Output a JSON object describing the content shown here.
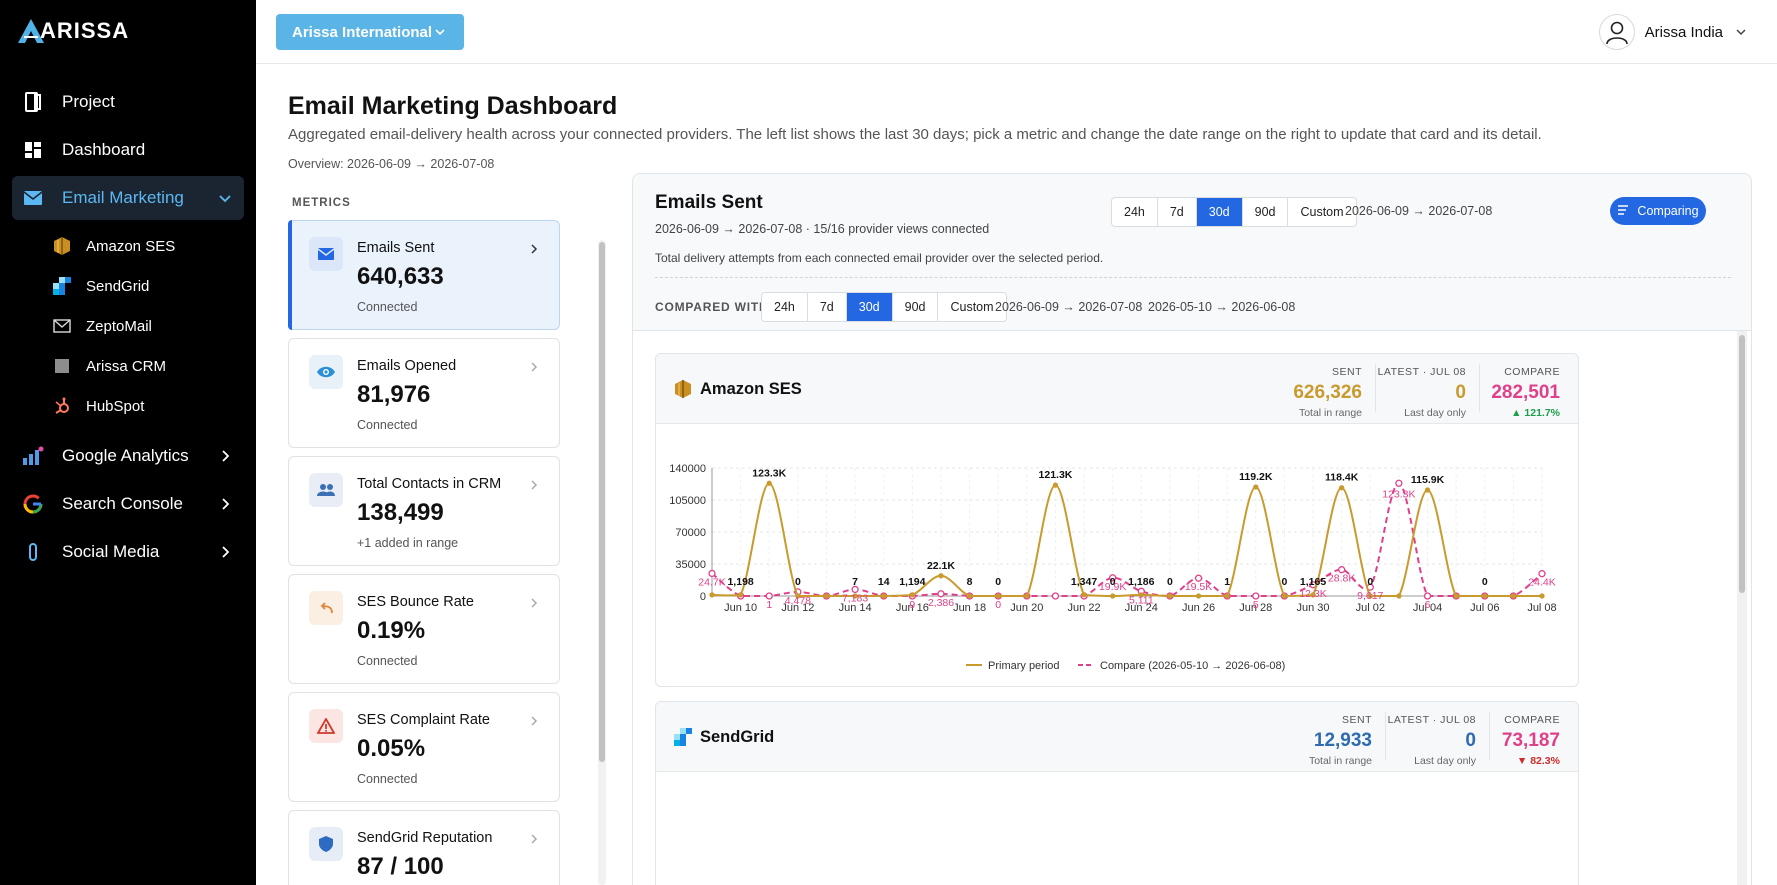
{
  "brand": {
    "logo_text": "ARISSA"
  },
  "sidebar": {
    "items": [
      {
        "label": "Project",
        "icon": "project-icon"
      },
      {
        "label": "Dashboard",
        "icon": "dashboard-icon"
      },
      {
        "label": "Email Marketing",
        "icon": "mail-icon"
      },
      {
        "label": "Google Analytics",
        "icon": "analytics-icon"
      },
      {
        "label": "Search Console",
        "icon": "google-icon"
      },
      {
        "label": "Social Media",
        "icon": "social-icon"
      }
    ],
    "email_sub": [
      {
        "label": "Amazon SES",
        "icon": "amazon-ses-icon"
      },
      {
        "label": "SendGrid",
        "icon": "sendgrid-icon"
      },
      {
        "label": "ZeptoMail",
        "icon": "zeptomail-icon"
      },
      {
        "label": "Arissa CRM",
        "icon": "crm-icon"
      },
      {
        "label": "HubSpot",
        "icon": "hubspot-icon"
      }
    ]
  },
  "topbar": {
    "org": "Arissa International",
    "user": "Arissa India"
  },
  "page": {
    "title": "Email Marketing Dashboard",
    "description": "Aggregated email-delivery health across your connected providers. The left list shows the last 30 days; pick a metric and change the date range on the right to update that card and its detail.",
    "overview": "Overview: 2026-06-09 → 2026-07-08",
    "metrics_label": "METRICS"
  },
  "metrics": [
    {
      "name": "Emails Sent",
      "value": "640,633",
      "sub": "Connected",
      "icon": "mail-icon",
      "accent": "#2467e3"
    },
    {
      "name": "Emails Opened",
      "value": "81,976",
      "sub": "Connected",
      "icon": "eye-icon",
      "accent": "#2a8fd6"
    },
    {
      "name": "Total Contacts in CRM",
      "value": "138,499",
      "sub": "+1 added in range",
      "icon": "users-icon",
      "accent": "#3b6fb6"
    },
    {
      "name": "SES Bounce Rate",
      "value": "0.19%",
      "sub": "Connected",
      "icon": "bounce-icon",
      "accent": "#e0853a"
    },
    {
      "name": "SES Complaint Rate",
      "value": "0.05%",
      "sub": "Connected",
      "icon": "warning-icon",
      "accent": "#d33a2c"
    },
    {
      "name": "SendGrid Reputation",
      "value": "87 / 100",
      "sub": "",
      "icon": "shield-icon",
      "accent": "#2f6bc2"
    }
  ],
  "detail": {
    "title": "Emails Sent",
    "subtitle": "2026-06-09 → 2026-07-08 · 15/16 provider views connected",
    "description": "Total delivery attempts from each connected email provider over the selected period.",
    "ranges": [
      "24h",
      "7d",
      "30d",
      "90d",
      "Custom"
    ],
    "selected_range": "30d",
    "range_text": "2026-06-09 → 2026-07-08",
    "comparing_label": "Comparing",
    "compared_with_label": "COMPARED WITH",
    "compare_ranges": [
      "24h",
      "7d",
      "30d",
      "90d",
      "Custom"
    ],
    "compare_selected": "30d",
    "primary_range": "2026-06-09 → 2026-07-08",
    "compare_range": "2026-05-10 → 2026-06-08"
  },
  "providers": [
    {
      "name": "Amazon SES",
      "sent_label": "SENT",
      "sent": "626,326",
      "sent_note": "Total in range",
      "sent_color": "#c99a2e",
      "latest_label": "LATEST · JUL 08",
      "latest": "0",
      "latest_note": "Last day only",
      "latest_color": "#c99a2e",
      "compare_label": "COMPARE",
      "compare": "282,501",
      "change": "▲ 121.7%",
      "change_color": "#1e9e4a"
    },
    {
      "name": "SendGrid",
      "sent_label": "SENT",
      "sent": "12,933",
      "sent_note": "Total in range",
      "sent_color": "#2f6bb0",
      "latest_label": "LATEST · JUL 08",
      "latest": "0",
      "latest_note": "Last day only",
      "latest_color": "#2f6bb0",
      "compare_label": "COMPARE",
      "compare": "73,187",
      "change": "▼ 82.3%",
      "change_color": "#d02b2b"
    }
  ],
  "chart_data": {
    "type": "line",
    "x": [
      "Jun 09",
      "Jun 10",
      "Jun 11",
      "Jun 12",
      "Jun 13",
      "Jun 14",
      "Jun 15",
      "Jun 16",
      "Jun 17",
      "Jun 18",
      "Jun 19",
      "Jun 20",
      "Jun 21",
      "Jun 22",
      "Jun 23",
      "Jun 24",
      "Jun 25",
      "Jun 26",
      "Jun 27",
      "Jun 28",
      "Jun 29",
      "Jun 30",
      "Jul 01",
      "Jul 02",
      "Jul 03",
      "Jul 04",
      "Jul 05",
      "Jul 06",
      "Jul 07",
      "Jul 08"
    ],
    "xticks": [
      "Jun 10",
      "Jun 12",
      "Jun 14",
      "Jun 16",
      "Jun 18",
      "Jun 20",
      "Jun 22",
      "Jun 24",
      "Jun 26",
      "Jun 28",
      "Jun 30",
      "Jul 02",
      "Jul 04",
      "Jul 06",
      "Jul 08"
    ],
    "yticks": [
      0,
      35000,
      70000,
      105000,
      140000
    ],
    "ylim": [
      0,
      140000
    ],
    "series": [
      {
        "name": "Primary period",
        "color": "#c99a2e",
        "dashed": false,
        "values": [
          1198,
          1198,
          123300,
          0,
          7,
          7,
          14,
          1194,
          22100,
          8,
          0,
          0,
          121300,
          1347,
          0,
          1186,
          0,
          0,
          1,
          119200,
          0,
          1165,
          118400,
          0,
          0,
          115900,
          0,
          0,
          0,
          0
        ],
        "labels": [
          "",
          "1,198",
          "123.3K",
          "0",
          "",
          "7",
          "14",
          "1,194",
          "22.1K",
          "8",
          "0",
          "",
          "121.3K",
          "1,347",
          "0",
          "1,186",
          "0",
          "",
          "1",
          "119.2K",
          "0",
          "1,165",
          "118.4K",
          "0",
          "",
          "115.9K",
          "",
          "0",
          "",
          ""
        ]
      },
      {
        "name": "Compare (2026-05-10 → 2026-06-08)",
        "color": "#e0408a",
        "dashed": true,
        "values": [
          24700,
          0,
          1,
          4478,
          0,
          7183,
          0,
          9,
          2386,
          0,
          0,
          0,
          0,
          0,
          19900,
          5111,
          0,
          19500,
          0,
          5,
          0,
          12300,
          28800,
          9617,
          123300,
          6,
          0,
          0,
          0,
          24400
        ],
        "labels": [
          "24.7K",
          "",
          "1",
          "4,478",
          "",
          "7,183",
          "",
          "9",
          "2,386",
          "",
          "0",
          "",
          "",
          "",
          "19.9K",
          "5,111",
          "",
          "19.5K",
          "",
          "5",
          "",
          "12.3K",
          "28.8K",
          "9,617",
          "123.3K",
          "6",
          "",
          "",
          "",
          "24.4K"
        ]
      }
    ]
  }
}
